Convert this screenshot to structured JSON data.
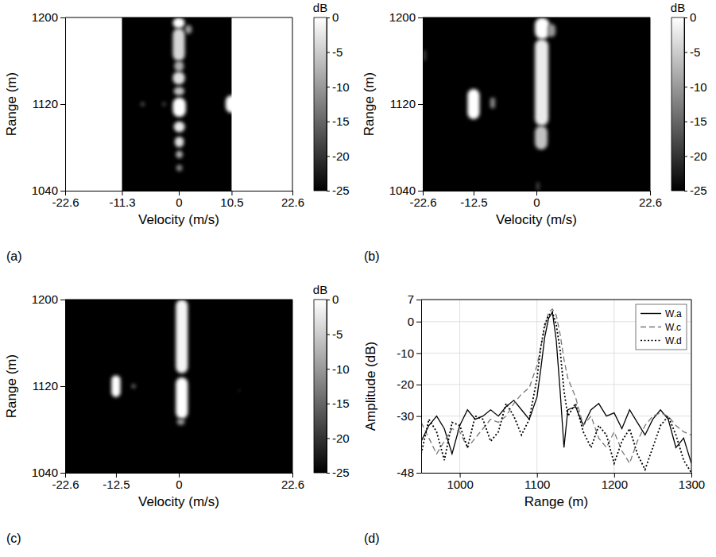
{
  "chart_data": [
    {
      "type": "heatmap",
      "label": "(a)",
      "xlabel": "Velocity (m/s)",
      "ylabel": "Range (m)",
      "xlim": [
        -22.6,
        22.6
      ],
      "ylim": [
        1040,
        1200
      ],
      "xticks": [
        -22.6,
        -11.3,
        0,
        10.5,
        22.6
      ],
      "yticks": [
        1040,
        1120,
        1200
      ],
      "cells": [
        [
          -11.3,
          10.5,
          1040,
          1200,
          -25
        ],
        [
          -1.2,
          1.2,
          1190,
          1200,
          0
        ],
        [
          -1.2,
          1.2,
          1160,
          1190,
          -4
        ],
        [
          -0.9,
          1.0,
          1150,
          1160,
          -8
        ],
        [
          -1.2,
          1.2,
          1138,
          1150,
          -3
        ],
        [
          -1.0,
          1.1,
          1128,
          1136,
          -6
        ],
        [
          -1.2,
          1.4,
          1108,
          1126,
          0
        ],
        [
          -1.0,
          1.2,
          1094,
          1104,
          -2
        ],
        [
          -0.8,
          1.0,
          1080,
          1090,
          -3
        ],
        [
          -0.6,
          0.8,
          1070,
          1077,
          -8
        ],
        [
          -0.5,
          0.7,
          1058,
          1064,
          -12
        ],
        [
          1.2,
          2.6,
          1185,
          1193,
          -10
        ],
        [
          9.3,
          11.7,
          1112,
          1128,
          0
        ],
        [
          -7.6,
          -6.8,
          1118,
          1122,
          -17
        ],
        [
          -3.3,
          -2.6,
          1118,
          1122,
          -18
        ]
      ],
      "colorbar": {
        "title": "dB",
        "range": [
          -25,
          0
        ],
        "ticks": [
          0,
          -5,
          -10,
          -15,
          -20,
          -25
        ]
      }
    },
    {
      "type": "heatmap",
      "label": "(b)",
      "xlabel": "Velocity (m/s)",
      "ylabel": "Range (m)",
      "xlim": [
        -22.6,
        22.6
      ],
      "ylim": [
        1040,
        1200
      ],
      "xticks": [
        -22.6,
        -12.5,
        0,
        22.6
      ],
      "yticks": [
        1040,
        1120,
        1200
      ],
      "cells": [
        [
          -22.6,
          22.6,
          1040,
          1200,
          -25
        ],
        [
          -13.7,
          -11.3,
          1106,
          1134,
          0
        ],
        [
          -9.2,
          -8.2,
          1116,
          1126,
          -12
        ],
        [
          -0.3,
          2.6,
          1180,
          1200,
          0
        ],
        [
          -0.3,
          2.4,
          1100,
          1180,
          -2
        ],
        [
          -0.3,
          2.2,
          1078,
          1100,
          -6
        ],
        [
          2.2,
          3.8,
          1182,
          1194,
          -10
        ],
        [
          0.0,
          0.6,
          1040,
          1048,
          -18
        ],
        [
          -22.6,
          -22.0,
          1160,
          1170,
          -18
        ]
      ],
      "colorbar": {
        "title": "dB",
        "range": [
          -25,
          0
        ],
        "ticks": [
          0,
          -5,
          -10,
          -15,
          -20,
          -25
        ]
      }
    },
    {
      "type": "heatmap",
      "label": "(c)",
      "xlabel": "Velocity (m/s)",
      "ylabel": "Range (m)",
      "xlim": [
        -22.6,
        22.6
      ],
      "ylim": [
        1040,
        1200
      ],
      "xticks": [
        -22.6,
        -12.5,
        0,
        22.6
      ],
      "yticks": [
        1040,
        1120,
        1200
      ],
      "cells": [
        [
          -22.6,
          22.6,
          1040,
          1200,
          -25
        ],
        [
          -13.4,
          -11.6,
          1110,
          1130,
          0
        ],
        [
          -9.4,
          -8.6,
          1118,
          1122,
          -14
        ],
        [
          -0.6,
          1.8,
          1132,
          1200,
          -1
        ],
        [
          -0.6,
          1.8,
          1090,
          1128,
          0
        ],
        [
          -0.4,
          1.2,
          1084,
          1090,
          -10
        ],
        [
          11.8,
          12.2,
          1114,
          1118,
          -22
        ]
      ],
      "colorbar": {
        "title": "dB",
        "range": [
          -25,
          0
        ],
        "ticks": [
          0,
          -5,
          -10,
          -15,
          -20,
          -25
        ]
      }
    },
    {
      "type": "line",
      "label": "(d)",
      "xlabel": "Range (m)",
      "ylabel": "Amplitude (dB)",
      "xlim": [
        950,
        1300
      ],
      "ylim": [
        -48,
        7
      ],
      "xticks": [
        1000,
        1100,
        1200,
        1300
      ],
      "yticks": [
        7,
        0,
        -10,
        -20,
        -30,
        -48
      ],
      "grid": true,
      "legend": "top-right",
      "x": [
        950,
        960,
        970,
        980,
        990,
        1000,
        1010,
        1020,
        1030,
        1040,
        1050,
        1060,
        1070,
        1080,
        1090,
        1100,
        1105,
        1110,
        1115,
        1120,
        1125,
        1130,
        1135,
        1140,
        1150,
        1160,
        1170,
        1180,
        1190,
        1200,
        1210,
        1220,
        1230,
        1240,
        1250,
        1260,
        1270,
        1280,
        1290,
        1300
      ],
      "series": [
        {
          "name": "W.a",
          "color": "#000000",
          "line_style": "solid",
          "values": [
            -38,
            -33,
            -30,
            -34,
            -42,
            -33,
            -28,
            -31,
            -30,
            -28,
            -30,
            -27,
            -25,
            -28,
            -31,
            -24,
            -15,
            -5,
            1,
            3,
            -6,
            -22,
            -40,
            -28,
            -27,
            -33,
            -28,
            -26,
            -30,
            -29,
            -34,
            -28,
            -32,
            -36,
            -31,
            -28,
            -31,
            -40,
            -37,
            -45
          ]
        },
        {
          "name": "W.c",
          "color": "#777777",
          "line_style": "dashed",
          "values": [
            -32,
            -37,
            -42,
            -38,
            -34,
            -35,
            -40,
            -37,
            -34,
            -31,
            -32,
            -30,
            -26,
            -23,
            -21,
            -14,
            -8,
            -2,
            3,
            4,
            2,
            -4,
            -12,
            -18,
            -24,
            -33,
            -30,
            -37,
            -40,
            -35,
            -41,
            -45,
            -38,
            -33,
            -30,
            -29,
            -30,
            -33,
            -35,
            -36
          ]
        },
        {
          "name": "W.d",
          "color": "#000000",
          "line_style": "dotted",
          "values": [
            -42,
            -31,
            -35,
            -44,
            -32,
            -33,
            -40,
            -30,
            -31,
            -38,
            -35,
            -26,
            -30,
            -36,
            -31,
            -18,
            -8,
            -1,
            2,
            3,
            -1,
            -9,
            -22,
            -30,
            -26,
            -35,
            -40,
            -33,
            -36,
            -45,
            -38,
            -34,
            -42,
            -47,
            -40,
            -33,
            -30,
            -36,
            -44,
            -48
          ]
        }
      ]
    }
  ]
}
